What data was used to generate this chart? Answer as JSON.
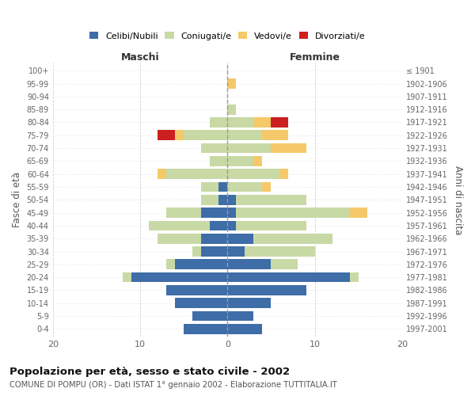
{
  "age_groups": [
    "0-4",
    "5-9",
    "10-14",
    "15-19",
    "20-24",
    "25-29",
    "30-34",
    "35-39",
    "40-44",
    "45-49",
    "50-54",
    "55-59",
    "60-64",
    "65-69",
    "70-74",
    "75-79",
    "80-84",
    "85-89",
    "90-94",
    "95-99",
    "100+"
  ],
  "birth_years": [
    "1997-2001",
    "1992-1996",
    "1987-1991",
    "1982-1986",
    "1977-1981",
    "1972-1976",
    "1967-1971",
    "1962-1966",
    "1957-1961",
    "1952-1956",
    "1947-1951",
    "1942-1946",
    "1937-1941",
    "1932-1936",
    "1927-1931",
    "1922-1926",
    "1917-1921",
    "1912-1916",
    "1907-1911",
    "1902-1906",
    "≤ 1901"
  ],
  "males_celibi": [
    5,
    4,
    6,
    7,
    11,
    6,
    3,
    3,
    2,
    3,
    1,
    1,
    0,
    0,
    0,
    0,
    0,
    0,
    0,
    0,
    0
  ],
  "males_coniugati": [
    0,
    0,
    0,
    0,
    1,
    1,
    1,
    5,
    7,
    4,
    2,
    2,
    7,
    2,
    3,
    5,
    2,
    0,
    0,
    0,
    0
  ],
  "males_vedovi": [
    0,
    0,
    0,
    0,
    0,
    0,
    0,
    0,
    0,
    0,
    0,
    0,
    1,
    0,
    0,
    1,
    0,
    0,
    0,
    0,
    0
  ],
  "males_divorziati": [
    0,
    0,
    0,
    0,
    0,
    0,
    0,
    0,
    0,
    0,
    0,
    0,
    0,
    0,
    0,
    2,
    0,
    0,
    0,
    0,
    0
  ],
  "females_celibi": [
    4,
    3,
    5,
    9,
    14,
    5,
    2,
    3,
    1,
    1,
    1,
    0,
    0,
    0,
    0,
    0,
    0,
    0,
    0,
    0,
    0
  ],
  "females_coniugati": [
    0,
    0,
    0,
    0,
    1,
    3,
    8,
    9,
    8,
    13,
    8,
    4,
    6,
    3,
    5,
    4,
    3,
    1,
    0,
    0,
    0
  ],
  "females_vedovi": [
    0,
    0,
    0,
    0,
    0,
    0,
    0,
    0,
    0,
    2,
    0,
    1,
    1,
    1,
    4,
    3,
    2,
    0,
    0,
    1,
    0
  ],
  "females_divorziati": [
    0,
    0,
    0,
    0,
    0,
    0,
    0,
    0,
    0,
    0,
    0,
    0,
    0,
    0,
    0,
    0,
    2,
    0,
    0,
    0,
    0
  ],
  "color_celibi": "#3e6da8",
  "color_coniugati": "#c8d9a5",
  "color_vedovi": "#f5c96a",
  "color_divorziati": "#cc2020",
  "title": "Popolazione per età, sesso e stato civile - 2002",
  "subtitle": "COMUNE DI POMPU (OR) - Dati ISTAT 1° gennaio 2002 - Elaborazione TUTTITALIA.IT",
  "xlabel_left": "Maschi",
  "xlabel_right": "Femmine",
  "ylabel_left": "Fasce di età",
  "ylabel_right": "Anni di nascita",
  "xlim": 20,
  "background_color": "#ffffff",
  "grid_color": "#cccccc"
}
